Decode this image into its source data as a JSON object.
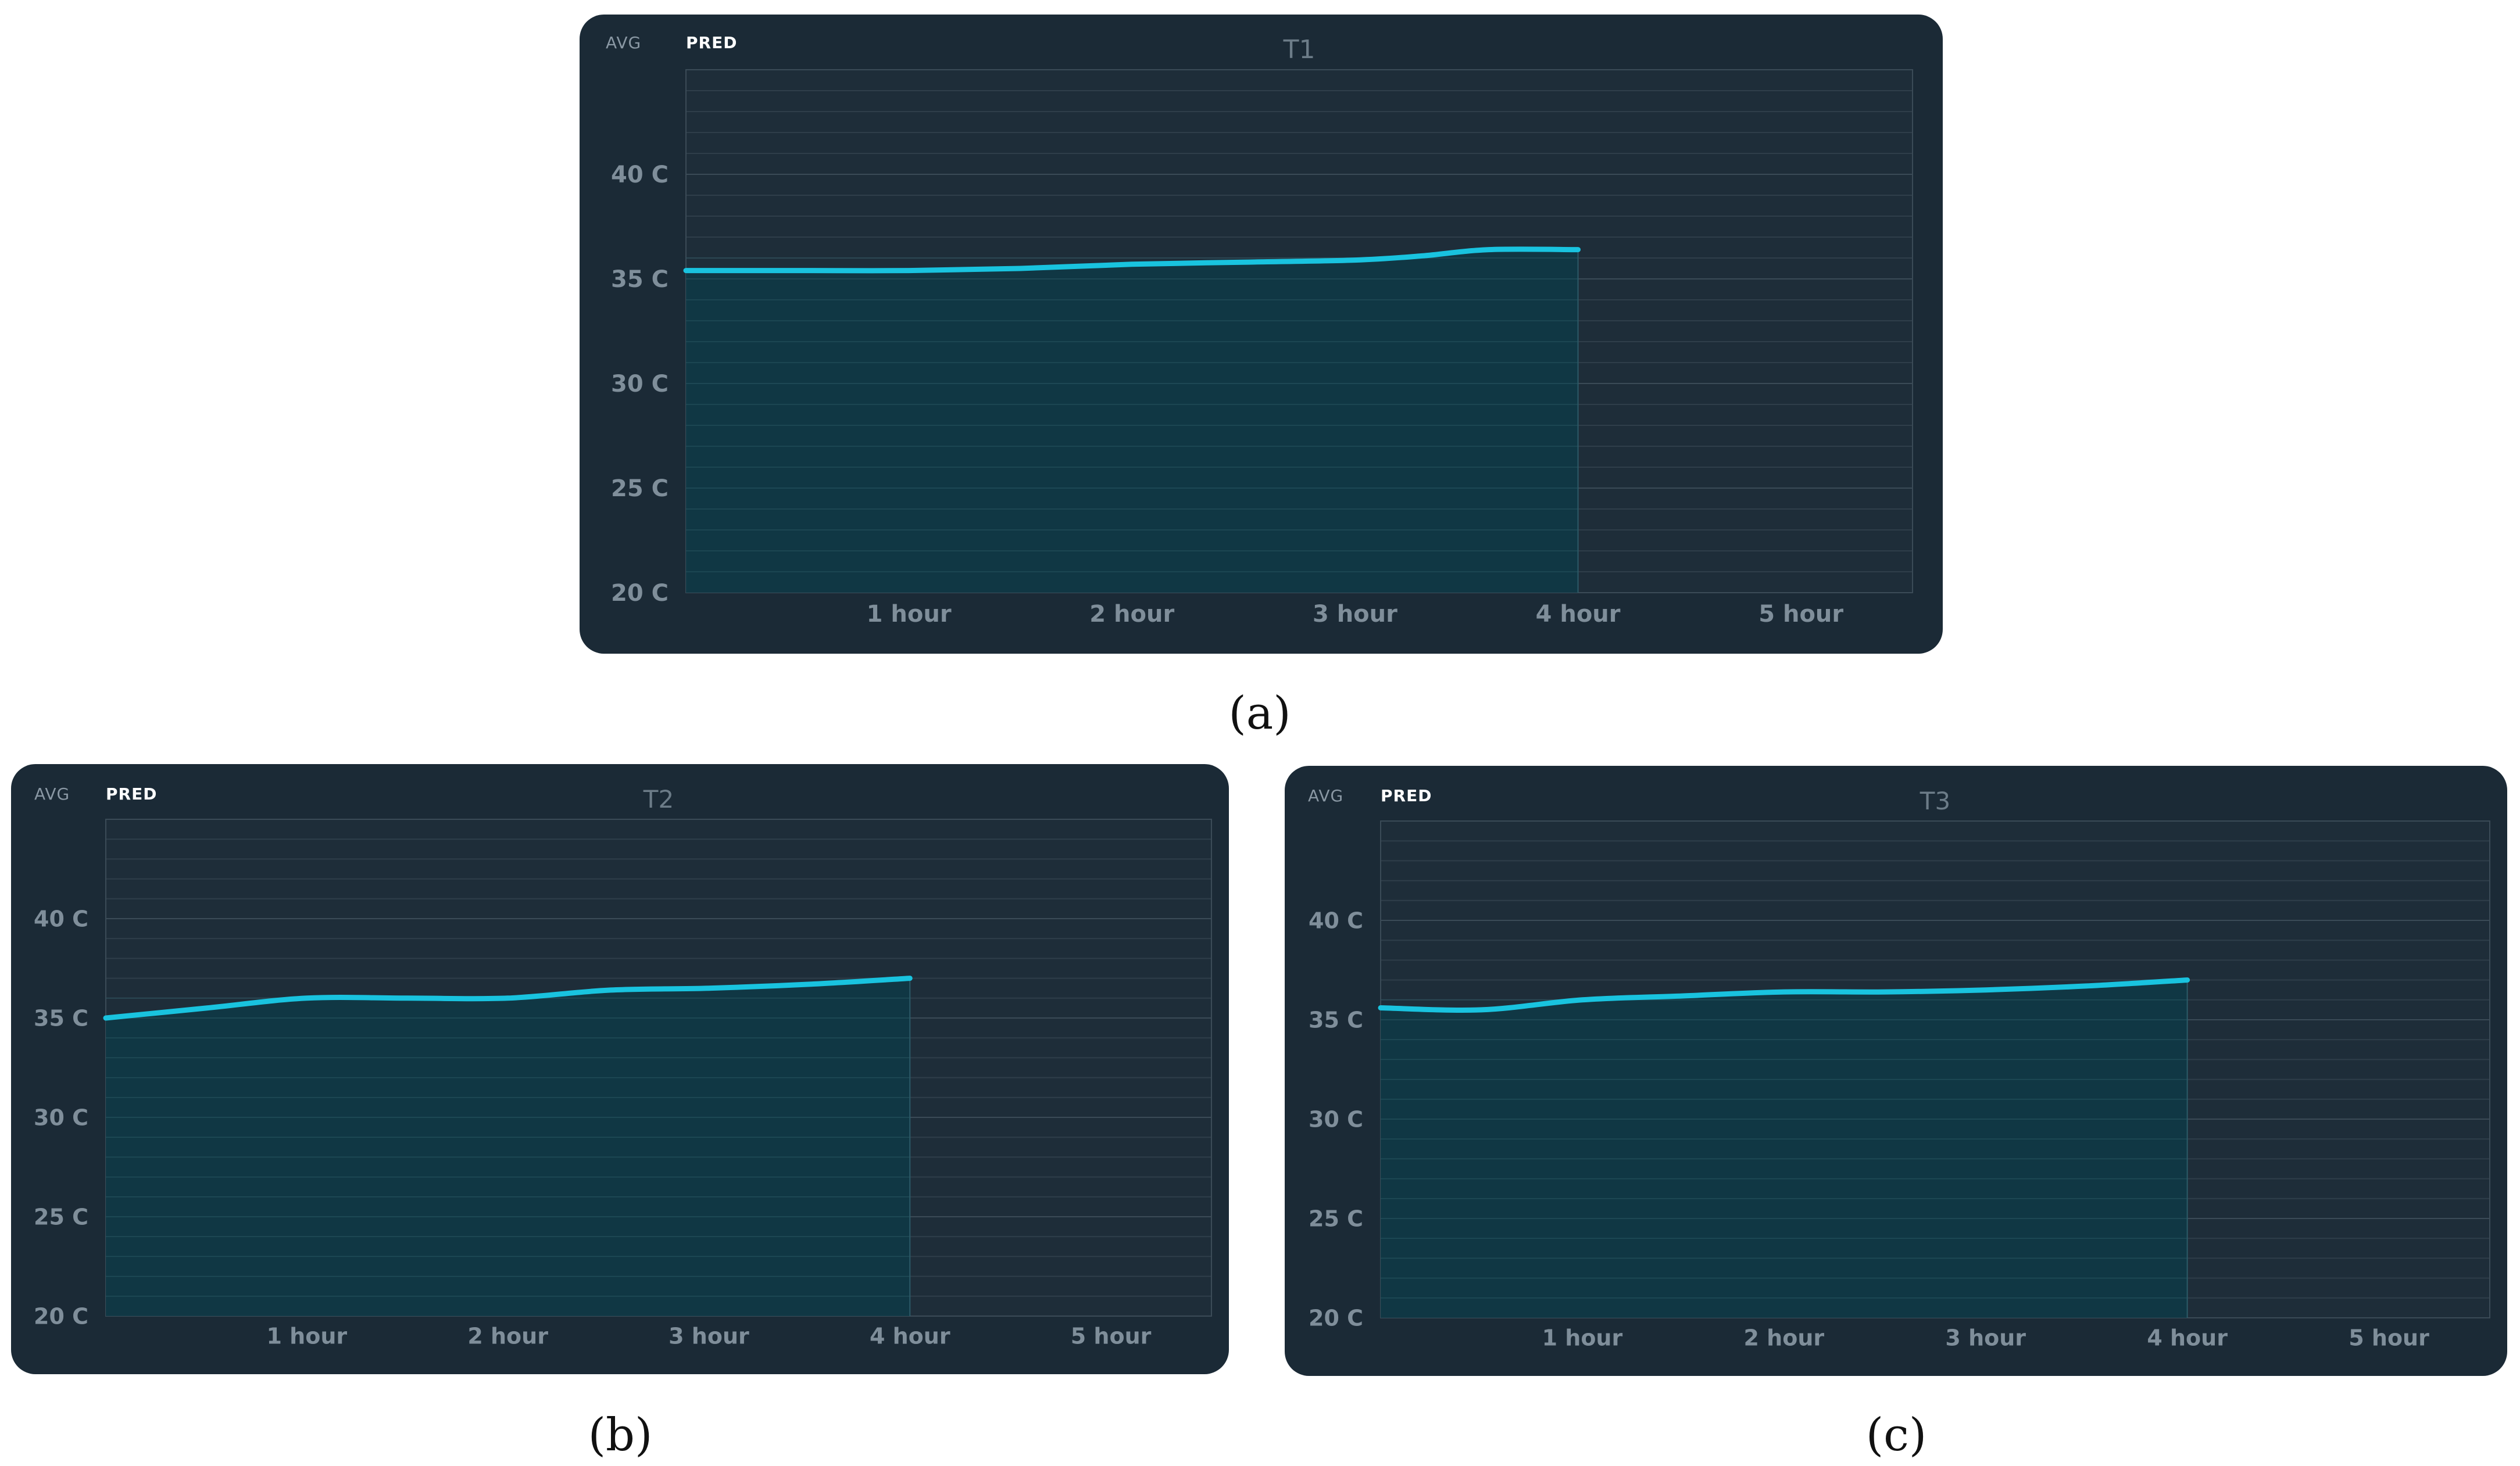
{
  "chart_data": [
    {
      "type": "area",
      "title": "T1",
      "caption": "(a)",
      "tabs": [
        "AVG",
        "PRED"
      ],
      "active_tab": "PRED",
      "x_tick_labels": [
        "1 hour",
        "2 hour",
        "3 hour",
        "4 hour",
        "5 hour"
      ],
      "x_ticks": [
        1,
        2,
        3,
        4,
        5
      ],
      "xlim": [
        0,
        5.5
      ],
      "y_tick_labels": [
        "20 C",
        "25 C",
        "30 C",
        "35 C",
        "40 C"
      ],
      "y_ticks": [
        20,
        25,
        30,
        35,
        40
      ],
      "ylim": [
        20,
        45
      ],
      "grid": true,
      "series": [
        {
          "x": [
            0,
            0.5,
            1,
            1.5,
            2,
            2.5,
            3,
            3.3,
            3.6,
            4
          ],
          "y": [
            35.4,
            35.4,
            35.4,
            35.5,
            35.7,
            35.8,
            35.9,
            36.1,
            36.4,
            36.4
          ]
        }
      ],
      "colors": {
        "line": "#19c3df",
        "fill": "#0e3a47",
        "panel": "#1b2a36"
      }
    },
    {
      "type": "area",
      "title": "T2",
      "caption": "(b)",
      "tabs": [
        "AVG",
        "PRED"
      ],
      "active_tab": "PRED",
      "x_tick_labels": [
        "1 hour",
        "2 hour",
        "3 hour",
        "4 hour",
        "5 hour"
      ],
      "x_ticks": [
        1,
        2,
        3,
        4,
        5
      ],
      "xlim": [
        0,
        5.5
      ],
      "y_tick_labels": [
        "20 C",
        "25 C",
        "30 C",
        "35 C",
        "40 C"
      ],
      "y_ticks": [
        20,
        25,
        30,
        35,
        40
      ],
      "ylim": [
        20,
        45
      ],
      "grid": true,
      "series": [
        {
          "x": [
            0,
            0.5,
            1,
            1.5,
            2,
            2.5,
            3,
            3.5,
            4
          ],
          "y": [
            35.0,
            35.5,
            36.0,
            36.0,
            36.0,
            36.4,
            36.5,
            36.7,
            37.0
          ]
        }
      ],
      "colors": {
        "line": "#19c3df",
        "fill": "#0e3a47",
        "panel": "#1b2a36"
      }
    },
    {
      "type": "area",
      "title": "T3",
      "caption": "(c)",
      "tabs": [
        "AVG",
        "PRED"
      ],
      "active_tab": "PRED",
      "x_tick_labels": [
        "1 hour",
        "2 hour",
        "3 hour",
        "4 hour",
        "5 hour"
      ],
      "x_ticks": [
        1,
        2,
        3,
        4,
        5
      ],
      "xlim": [
        0,
        5.5
      ],
      "y_tick_labels": [
        "20 C",
        "25 C",
        "30 C",
        "35 C",
        "40 C"
      ],
      "y_ticks": [
        20,
        25,
        30,
        35,
        40
      ],
      "ylim": [
        20,
        45
      ],
      "grid": true,
      "series": [
        {
          "x": [
            0,
            0.5,
            1,
            1.5,
            2,
            2.5,
            3,
            3.5,
            4
          ],
          "y": [
            35.6,
            35.5,
            36.0,
            36.2,
            36.4,
            36.4,
            36.5,
            36.7,
            37.0
          ]
        }
      ],
      "colors": {
        "line": "#19c3df",
        "fill": "#0e3a47",
        "panel": "#1b2a36"
      }
    }
  ]
}
